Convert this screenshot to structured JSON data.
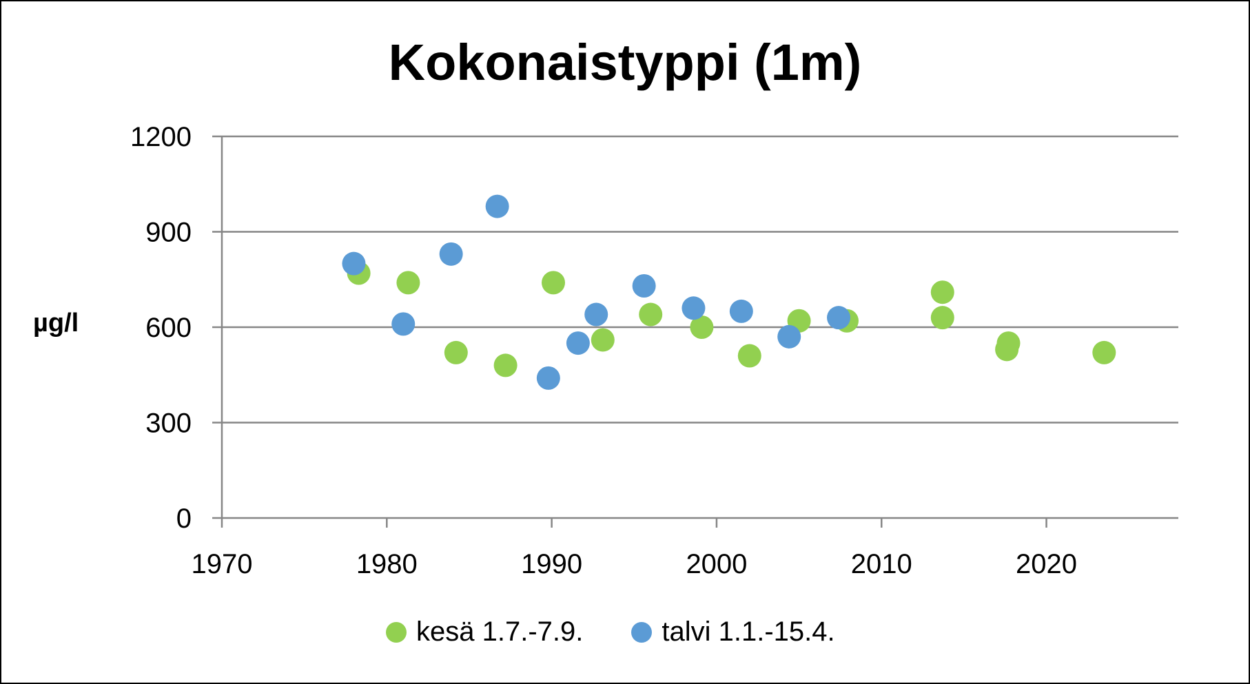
{
  "chart_data": {
    "type": "scatter",
    "title": "Kokonaistyppi (1m)",
    "xlabel": "",
    "ylabel": "µg/l",
    "xlim": [
      1970,
      2028
    ],
    "ylim": [
      0,
      1200
    ],
    "x_ticks": [
      "1970",
      "1980",
      "1990",
      "2000",
      "2010",
      "2020"
    ],
    "y_ticks": [
      "0",
      "300",
      "600",
      "900",
      "1200"
    ],
    "grid": "horizontal",
    "legend_position": "bottom",
    "series": [
      {
        "name": "kesä 1.7.-7.9.",
        "color": "#92D050",
        "points": [
          [
            1978.3,
            770
          ],
          [
            1981.3,
            740
          ],
          [
            1984.2,
            520
          ],
          [
            1987.2,
            480
          ],
          [
            1990.1,
            740
          ],
          [
            1993.1,
            560
          ],
          [
            1996.0,
            640
          ],
          [
            1999.1,
            600
          ],
          [
            2002.0,
            510
          ],
          [
            2005.0,
            620
          ],
          [
            2007.9,
            620
          ],
          [
            2013.7,
            710
          ],
          [
            2013.7,
            630
          ],
          [
            2017.6,
            530
          ],
          [
            2017.7,
            550
          ],
          [
            2023.5,
            520
          ]
        ]
      },
      {
        "name": "talvi 1.1.-15.4.",
        "color": "#5B9BD5",
        "points": [
          [
            1978.0,
            800
          ],
          [
            1981.0,
            610
          ],
          [
            1983.9,
            830
          ],
          [
            1986.7,
            980
          ],
          [
            1989.8,
            440
          ],
          [
            1991.6,
            550
          ],
          [
            1992.7,
            640
          ],
          [
            1995.6,
            730
          ],
          [
            1998.6,
            660
          ],
          [
            2001.5,
            650
          ],
          [
            2004.4,
            570
          ],
          [
            2007.4,
            630
          ]
        ]
      }
    ]
  }
}
